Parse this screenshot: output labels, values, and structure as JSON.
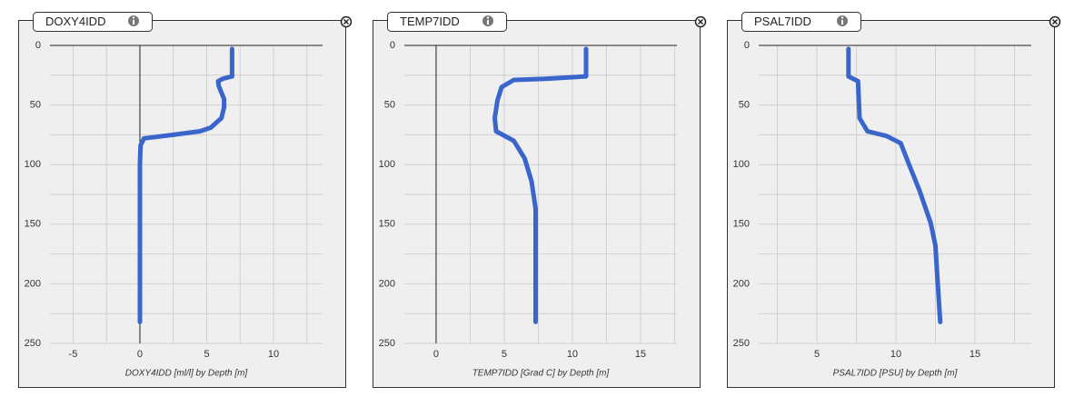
{
  "chart_data": [
    {
      "type": "line",
      "title": "DOXY4IDD",
      "xlabel": "DOXY4IDD [ml/l] by Depth [m]",
      "color": "#3a66cc",
      "x": [
        6.9,
        6.9,
        6.2,
        5.85,
        5.9,
        6.3,
        6.3,
        6.1,
        5.3,
        4.5,
        2.5,
        0.3,
        0.05,
        0,
        0
      ],
      "values": [
        3,
        26,
        28,
        30,
        34,
        45,
        52,
        61,
        69,
        72,
        75,
        78,
        84,
        100,
        232
      ],
      "xlim": [
        -6.73,
        13.67
      ],
      "ylim": [
        0,
        250
      ],
      "xticks": [
        -5,
        0,
        5,
        10
      ],
      "yticks": [
        0,
        50,
        100,
        150,
        200,
        250
      ],
      "xgrid": [
        -5,
        -2.5,
        0,
        2.5,
        5,
        7.5,
        10,
        12.5
      ],
      "ygrid": [
        25,
        50,
        75,
        100,
        125,
        150,
        175,
        200,
        225,
        250
      ]
    },
    {
      "type": "line",
      "title": "TEMP7IDD",
      "xlabel": "TEMP7IDD [Grad C] by Depth [m]",
      "color": "#3a66cc",
      "x": [
        11,
        11,
        8,
        5.7,
        4.8,
        4.5,
        4.3,
        4.4,
        5.7,
        6.5,
        7,
        7.3,
        7.3
      ],
      "values": [
        3,
        26,
        28,
        29,
        35,
        46,
        61,
        72,
        80,
        95,
        114,
        137,
        232
      ],
      "xlim": [
        -2.33,
        17.67
      ],
      "ylim": [
        0,
        250
      ],
      "xticks": [
        0,
        5,
        10,
        15
      ],
      "yticks": [
        0,
        50,
        100,
        150,
        200,
        250
      ],
      "xgrid": [
        0,
        2.5,
        5,
        7.5,
        10,
        12.5,
        15,
        17.5
      ],
      "ygrid": [
        25,
        50,
        75,
        100,
        125,
        150,
        175,
        200,
        225,
        250
      ]
    },
    {
      "type": "line",
      "title": "PSAL7IDD",
      "xlabel": "PSAL7IDD [PSU] by Depth [m]",
      "color": "#3a66cc",
      "x": [
        7,
        7,
        7.6,
        7.7,
        8.2,
        9.4,
        10.3,
        10.8,
        11.5,
        12.2,
        12.5,
        12.6,
        12.8
      ],
      "values": [
        3,
        26,
        30,
        61,
        72,
        76,
        82,
        99,
        122,
        149,
        168,
        191,
        232
      ],
      "xlim": [
        1.32,
        18.56
      ],
      "ylim": [
        0,
        250
      ],
      "xticks": [
        5,
        10,
        15
      ],
      "yticks": [
        0,
        50,
        100,
        150,
        200,
        250
      ],
      "xgrid": [
        2.5,
        5,
        7.5,
        10,
        12.5,
        15,
        17.5
      ],
      "ygrid": [
        25,
        50,
        75,
        100,
        125,
        150,
        175,
        200,
        225,
        250
      ]
    }
  ]
}
